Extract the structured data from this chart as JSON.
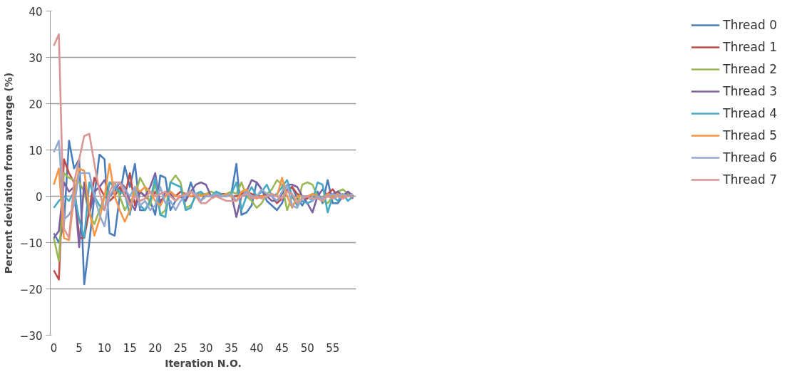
{
  "chart_data": {
    "type": "line",
    "xlabel": "Iteration N.O.",
    "ylabel": "Percent deviation from average (%)",
    "x": [
      0,
      1,
      2,
      3,
      4,
      5,
      6,
      7,
      8,
      9,
      10,
      11,
      12,
      13,
      14,
      15,
      16,
      17,
      18,
      19,
      20,
      21,
      22,
      23,
      24,
      25,
      26,
      27,
      28,
      29,
      30,
      31,
      32,
      33,
      34,
      35,
      36,
      37,
      38,
      39,
      40,
      41,
      42,
      43,
      44,
      45,
      46,
      47,
      48,
      49,
      50,
      51,
      52,
      53,
      54,
      55,
      56,
      57,
      58,
      59
    ],
    "xlim": [
      -0.7,
      59.6
    ],
    "xticks": [
      0,
      5,
      10,
      15,
      20,
      25,
      30,
      35,
      40,
      45,
      50,
      55
    ],
    "ylim": [
      -30,
      40
    ],
    "yticks": [
      -30,
      -20,
      -10,
      0,
      10,
      20,
      30,
      40
    ],
    "grid": "y",
    "legend": "right",
    "marker": "none",
    "line_style": "solid",
    "series": [
      {
        "name": "Thread 0",
        "color": "#4a7ebb",
        "values": [
          -8,
          -10,
          -6,
          12,
          6,
          8,
          -19,
          -10,
          0,
          9,
          8,
          -8,
          -8.5,
          0,
          6.5,
          2,
          7,
          -3,
          -3,
          -1,
          -4,
          4.5,
          4,
          -3,
          -1,
          0,
          -1,
          3,
          0,
          -1,
          0.5,
          0,
          0.5,
          0,
          0,
          0.5,
          7,
          -4,
          -3.5,
          -2,
          3,
          1.5,
          -1,
          -2,
          -3,
          -1.5,
          1.5,
          2,
          -0.5,
          -2,
          0,
          -1,
          1,
          -1.5,
          3.5,
          -1.5,
          -1.5,
          0,
          1,
          0
        ]
      },
      {
        "name": "Thread 1",
        "color": "#be4b48",
        "values": [
          -16,
          -18,
          8,
          5,
          3,
          -9,
          -9,
          -3,
          4,
          2,
          0,
          -1,
          0,
          2,
          0,
          5,
          -2,
          1,
          0,
          -1,
          1,
          -1,
          0,
          1,
          0,
          1,
          0.5,
          0,
          0,
          0.5,
          0,
          0,
          0,
          0.5,
          0.5,
          0,
          0,
          0.5,
          1,
          0.5,
          0,
          0,
          0.5,
          0,
          -1.5,
          -0.5,
          1,
          2,
          0.5,
          0,
          -0.5,
          0.5,
          0,
          -0.5,
          0.5,
          1.5,
          0,
          -0.5,
          0.5,
          -0.5
        ]
      },
      {
        "name": "Thread 2",
        "color": "#98b954",
        "values": [
          -9,
          -14,
          5,
          4,
          3.5,
          3,
          1,
          -4,
          -6,
          -3,
          0,
          3,
          3,
          0,
          -3,
          -1,
          0,
          4,
          2,
          -2,
          3,
          -4,
          -3,
          3,
          4.5,
          3,
          -2.5,
          -2,
          0,
          0.5,
          0.5,
          1,
          0.5,
          0,
          0.5,
          1,
          0.5,
          3,
          0,
          -1,
          -2.5,
          -1.5,
          0.5,
          1.5,
          3.5,
          2.5,
          -3,
          0,
          -2,
          2.5,
          3,
          2.5,
          0,
          -1,
          -1.5,
          0,
          1,
          1.5,
          0.5,
          0
        ]
      },
      {
        "name": "Thread 3",
        "color": "#7d60a0",
        "values": [
          -9,
          -7.5,
          3,
          1,
          2,
          -11,
          3,
          -4,
          1,
          2,
          3.5,
          0,
          1,
          3,
          2,
          -1,
          -3,
          1,
          0,
          2,
          5,
          -2,
          1,
          0.5,
          -1,
          0,
          -1,
          1,
          2.5,
          3,
          2.5,
          0,
          0,
          0.5,
          0,
          0.5,
          -4.5,
          0,
          1,
          3.5,
          3,
          1.5,
          0,
          -1,
          -1,
          0.5,
          2.5,
          2.5,
          2,
          0,
          -1.5,
          -3.5,
          0,
          1.5,
          0,
          0.5,
          1,
          0,
          1,
          0
        ]
      },
      {
        "name": "Thread 4",
        "color": "#46aac5",
        "values": [
          -2.5,
          -1,
          0,
          -1,
          1,
          -5,
          -9,
          3,
          0,
          -2,
          -3,
          3,
          2,
          1,
          0.5,
          -4,
          2,
          -2,
          -3,
          -1,
          4,
          -4,
          -4.5,
          3,
          2.5,
          2,
          -3,
          -2.5,
          0.5,
          1,
          0,
          0,
          1,
          0.5,
          0,
          0.5,
          3,
          -3,
          0,
          2,
          0,
          1,
          2.5,
          0,
          0.5,
          2,
          3.5,
          0,
          -2,
          -1,
          -1.5,
          -1,
          3,
          2.5,
          -3.5,
          0,
          -1,
          0.5,
          -1,
          0
        ]
      },
      {
        "name": "Thread 5",
        "color": "#f79646",
        "values": [
          2.5,
          6,
          -9,
          -9.5,
          0,
          6,
          5.5,
          -3,
          -8.5,
          -5,
          0,
          7,
          0,
          -3,
          -5.5,
          -3,
          2,
          1,
          2,
          1,
          -1,
          -2,
          0,
          1,
          0,
          0,
          0.5,
          0,
          0.5,
          0,
          0.5,
          0,
          0.5,
          0,
          0.5,
          0,
          -1,
          1,
          1.5,
          0,
          -0.5,
          0,
          0,
          0.5,
          0,
          4,
          0,
          -2.5,
          0,
          0,
          0,
          0.5,
          0,
          -0.5,
          0.5,
          0,
          0.5,
          0,
          0,
          0.5
        ]
      },
      {
        "name": "Thread 6",
        "color": "#93a9d0",
        "values": [
          9.5,
          12,
          -5,
          -4,
          -2,
          5,
          5,
          5,
          0,
          -4,
          -6.5,
          0,
          2,
          3,
          1.5,
          0,
          2,
          -2,
          -1,
          -3,
          -2,
          2,
          -1.5,
          -1,
          -3,
          -1,
          0,
          1,
          0.5,
          -1,
          0,
          0,
          0.5,
          0,
          0,
          0.5,
          -1,
          0,
          1,
          0,
          0,
          1.5,
          0.5,
          0,
          -1,
          1,
          2.5,
          -2,
          -2.5,
          0,
          0,
          -1,
          0,
          -0.5,
          0,
          0.5,
          0,
          0.5,
          0,
          0.5
        ]
      },
      {
        "name": "Thread 7",
        "color": "#d99694",
        "values": [
          32.5,
          35,
          -7,
          -9,
          3,
          8,
          13,
          13.5,
          7,
          1,
          -3,
          1,
          3,
          3,
          0.5,
          -2,
          0,
          -1,
          -0.5,
          1,
          0,
          0.5,
          1,
          0,
          -1,
          0,
          0.5,
          1,
          0,
          -1.5,
          -1.5,
          -0.5,
          0,
          -0.5,
          -1,
          -1,
          -1,
          0,
          0.5,
          -0.5,
          0,
          -0.5,
          0,
          0.5,
          0,
          -0.5,
          1,
          0.5,
          -1.5,
          -0.5,
          0,
          -0.5,
          -0.5,
          -1,
          0,
          -0.5,
          0,
          -0.5,
          0,
          0
        ]
      }
    ]
  }
}
